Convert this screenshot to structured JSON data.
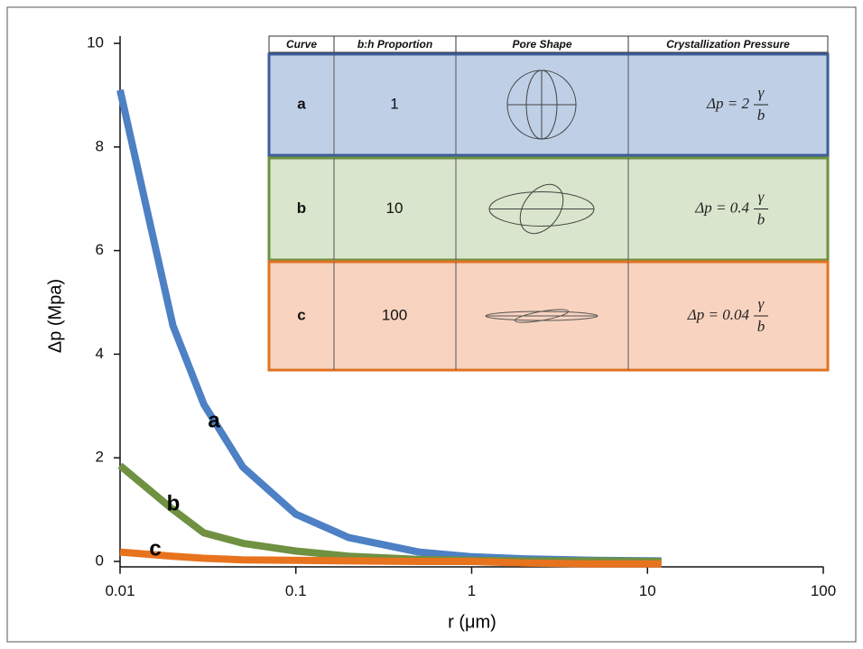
{
  "chart_data": {
    "type": "line",
    "xlabel": "r (μm)",
    "ylabel": "Δp (Mpa)",
    "x": [
      0.01,
      0.02,
      0.03,
      0.05,
      0.1,
      0.2,
      0.5,
      1,
      2,
      5,
      12
    ],
    "series": [
      {
        "name": "a",
        "color": "#4d80c4",
        "values": [
          9.1,
          4.55,
          3.03,
          1.82,
          0.91,
          0.46,
          0.18,
          0.09,
          0.05,
          0.02,
          0.01
        ]
      },
      {
        "name": "b",
        "color": "#6f9141",
        "values": [
          1.85,
          1.0,
          0.55,
          0.35,
          0.2,
          0.1,
          0.04,
          0.02,
          0.01,
          0.01,
          0.0
        ]
      },
      {
        "name": "c",
        "color": "#e8731e",
        "values": [
          0.18,
          0.1,
          0.06,
          0.03,
          0.02,
          0.01,
          0.0,
          0.0,
          -0.03,
          -0.05,
          -0.05
        ]
      }
    ],
    "xscale": "log",
    "xlim": [
      0.01,
      100
    ],
    "xticks": [
      0.01,
      0.1,
      1,
      10,
      100
    ],
    "ylim": [
      -0.1,
      10.1
    ],
    "yticks": [
      0,
      2,
      4,
      6,
      8,
      10
    ],
    "inset_table": {
      "columns": [
        "Curve",
        "b:h Proportion",
        "Pore Shape",
        "Crystallization Pressure"
      ],
      "rows": [
        {
          "curve": "a",
          "proportion": 1,
          "pressure": {
            "lhs": "Δp = 2",
            "num": "γ",
            "den": "b"
          }
        },
        {
          "curve": "b",
          "proportion": 10,
          "pressure": {
            "lhs": "Δp = 0.4",
            "num": "γ",
            "den": "b"
          }
        },
        {
          "curve": "c",
          "proportion": 100,
          "pressure": {
            "lhs": "Δp = 0.04",
            "num": "γ",
            "den": "b"
          }
        }
      ]
    }
  }
}
